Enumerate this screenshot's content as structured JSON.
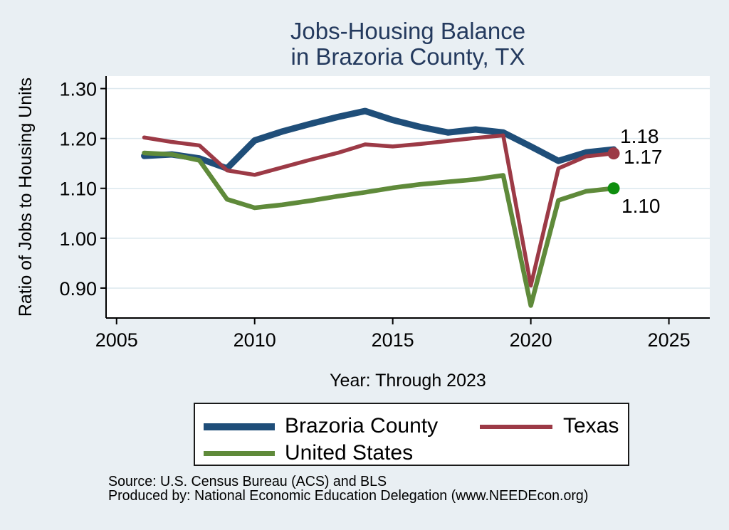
{
  "title": {
    "line1": "Jobs-Housing Balance",
    "line2": "in Brazoria County, TX"
  },
  "chart_data": {
    "type": "line",
    "title": "Jobs-Housing Balance in Brazoria County, TX",
    "xlabel": "Year: Through 2023",
    "ylabel": "Ratio of Jobs to Housing Units",
    "x": [
      2006,
      2007,
      2008,
      2009,
      2010,
      2011,
      2012,
      2013,
      2014,
      2015,
      2016,
      2017,
      2018,
      2019,
      2020,
      2021,
      2022,
      2023
    ],
    "series": [
      {
        "name": "Brazoria County",
        "color": "#1f4e79",
        "line_width": 9,
        "end_label": "1.18",
        "end_marker": false,
        "marker_color": "#1f4e79",
        "values": [
          1.165,
          1.168,
          1.16,
          1.14,
          1.196,
          1.214,
          1.229,
          1.243,
          1.255,
          1.237,
          1.223,
          1.212,
          1.218,
          1.212,
          1.184,
          1.155,
          1.172,
          1.178
        ]
      },
      {
        "name": "Texas",
        "color": "#9c3a46",
        "line_width": 5.5,
        "end_label": "1.17",
        "end_marker": true,
        "marker_color": "#9c3a46",
        "values": [
          1.202,
          1.193,
          1.186,
          1.136,
          1.127,
          1.142,
          1.157,
          1.171,
          1.188,
          1.184,
          1.189,
          1.195,
          1.201,
          1.206,
          0.905,
          1.14,
          1.164,
          1.17
        ]
      },
      {
        "name": "United States",
        "color": "#5f8a3a",
        "line_width": 6.5,
        "end_label": "1.10",
        "end_marker": true,
        "marker_color": "#0e8e0e",
        "values": [
          1.171,
          1.168,
          1.156,
          1.078,
          1.061,
          1.067,
          1.075,
          1.084,
          1.092,
          1.101,
          1.108,
          1.113,
          1.118,
          1.126,
          0.865,
          1.076,
          1.094,
          1.1
        ]
      }
    ],
    "x_ticks": [
      2005,
      2010,
      2015,
      2020,
      2025
    ],
    "y_ticks": [
      0.9,
      1.0,
      1.1,
      1.2,
      1.3
    ],
    "xlim": [
      2004.62,
      2026.48
    ],
    "ylim": [
      0.84,
      1.325
    ],
    "grid": "horizontal",
    "legend_position": "bottom"
  },
  "footer": {
    "source": "Source: U.S. Census Bureau (ACS) and BLS",
    "produced_by": "Produced by: National Economic Education Delegation (www.NEEDEcon.org)"
  },
  "colors": {
    "background": "#e9eff3",
    "plot_background": "#ffffff",
    "gridline": "#dbe7ee",
    "axis": "#000000",
    "title_text": "#243a5e"
  }
}
